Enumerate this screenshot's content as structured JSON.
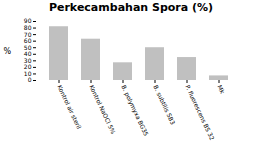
{
  "chart_data": {
    "type": "bar",
    "title": "Perkecambahan Spora (%)",
    "ylabel": "%",
    "categories": [
      "Kontrol air steril",
      "Kontrol NaOCl 5%",
      "B. polymyxa BG35",
      "B. subtilis SB3",
      "P. fluorescens BS 32",
      "Mk"
    ],
    "values": [
      82,
      63,
      27,
      50,
      35,
      7
    ],
    "color": "#c0c0c0",
    "ylim": [
      0,
      90
    ],
    "yticks": [
      0,
      10,
      20,
      30,
      40,
      50,
      60,
      70,
      80,
      90
    ],
    "grid": false
  }
}
